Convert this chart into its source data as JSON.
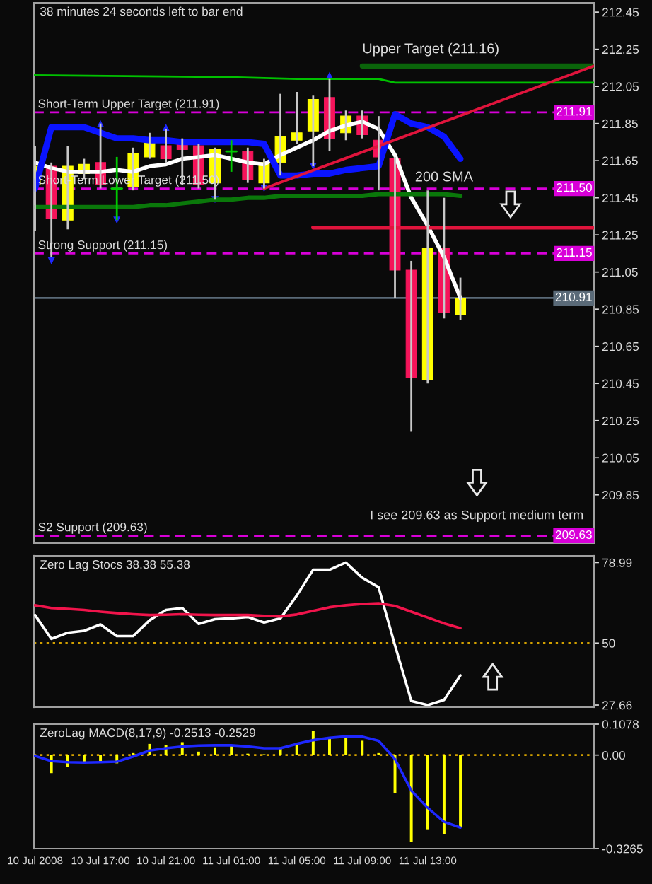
{
  "chart_data": [
    {
      "type": "candlestick",
      "annotations": [
        "38 minutes 24 seconds left to bar end",
        {
          "text": "Short-Term Upper Target (211.91)",
          "x": "2008-07-10T12:56",
          "y": 211.91
        },
        {
          "text": "Short-Term Lower Target (211.50)",
          "x": "2008-07-10T12:56",
          "y": 211.5
        },
        {
          "text": "Strong Support (211.15)",
          "x": "2008-07-10T12:56",
          "y": 211.15
        },
        {
          "text": "S2 Support (209.63)",
          "x": "2008-07-10T12:56",
          "y": 209.63
        },
        {
          "text": "I see 209.63 as Support medium term",
          "x": "2008-07-11T16:00",
          "y": 209.63
        }
      ],
      "x": [
        "2008-07-10T13:00",
        "2008-07-10T14:00",
        "2008-07-10T15:00",
        "2008-07-10T16:00",
        "2008-07-10T17:00",
        "2008-07-10T18:00",
        "2008-07-10T19:00",
        "2008-07-10T20:00",
        "2008-07-10T21:00",
        "2008-07-10T22:00",
        "2008-07-10T23:00",
        "2008-07-11T00:00",
        "2008-07-11T01:00",
        "2008-07-11T02:00",
        "2008-07-11T03:00",
        "2008-07-11T04:00",
        "2008-07-11T05:00",
        "2008-07-11T06:00",
        "2008-07-11T07:00",
        "2008-07-11T08:00",
        "2008-07-11T09:00",
        "2008-07-11T10:00",
        "2008-07-11T11:00",
        "2008-07-11T12:00",
        "2008-07-11T13:00",
        "2008-07-11T14:00",
        "2008-07-11T15:00"
      ],
      "series": [
        {
          "type": "candlestick",
          "color": "#c8c8c8",
          "colors": [
            "#ffff00",
            "#f5145a",
            "#ffff00",
            "#ffff00",
            "#f5145a",
            "#00c800",
            "#ffff00",
            "#ffff00",
            "#f5145a",
            "#f5145a",
            "#f5145a",
            "#ffff00",
            "#00c800",
            "#f5145a",
            "#ffff00",
            "#ffff00",
            "#ffff00",
            "#ffff00",
            "#f5145a",
            "#ffff00",
            "#f5145a",
            "#f5145a",
            "#f5145a",
            "#f5145a",
            "#ffff00",
            "#f5145a",
            "#ffff00"
          ],
          "ohlc": [
            [
              211.52,
              211.73,
              211.27,
              211.62
            ],
            [
              211.62,
              211.64,
              211.13,
              211.34
            ],
            [
              211.33,
              211.73,
              211.28,
              211.62
            ],
            [
              211.58,
              211.66,
              211.55,
              211.63
            ],
            [
              211.64,
              211.85,
              211.5,
              211.52
            ],
            [
              211.5,
              211.67,
              211.33,
              211.5
            ],
            [
              211.51,
              211.72,
              211.49,
              211.69
            ],
            [
              211.67,
              211.8,
              211.66,
              211.76
            ],
            [
              211.73,
              211.82,
              211.64,
              211.66
            ],
            [
              211.76,
              211.77,
              211.52,
              211.71
            ],
            [
              211.73,
              211.74,
              211.5,
              211.52
            ],
            [
              211.53,
              211.72,
              211.44,
              211.71
            ],
            [
              211.7,
              211.76,
              211.59,
              211.7
            ],
            [
              211.7,
              211.72,
              211.53,
              211.55
            ],
            [
              211.53,
              211.66,
              211.5,
              211.64
            ],
            [
              211.64,
              212.01,
              211.57,
              211.78
            ],
            [
              211.76,
              212.02,
              211.74,
              211.8
            ],
            [
              211.81,
              212.0,
              211.62,
              211.98
            ],
            [
              211.99,
              212.09,
              211.7,
              211.77
            ],
            [
              211.8,
              211.92,
              211.76,
              211.89
            ],
            [
              211.89,
              211.92,
              211.77,
              211.79
            ],
            [
              211.76,
              211.89,
              211.49,
              211.67
            ],
            [
              211.66,
              211.67,
              210.91,
              211.06
            ],
            [
              211.06,
              211.11,
              210.19,
              210.48
            ],
            [
              210.47,
              211.49,
              210.45,
              211.18
            ],
            [
              211.18,
              211.45,
              210.8,
              210.83
            ],
            [
              210.82,
              211.02,
              210.79,
              210.91
            ]
          ]
        },
        {
          "type": "line",
          "color": "#ffffff",
          "values": [
            211.64,
            211.61,
            211.59,
            211.59,
            211.59,
            211.6,
            211.59,
            211.62,
            211.63,
            211.66,
            211.67,
            211.68,
            211.66,
            211.64,
            211.63,
            211.68,
            211.72,
            211.76,
            211.81,
            211.84,
            211.86,
            211.82,
            211.68,
            211.45,
            211.3,
            211.13,
            210.91
          ]
        },
        {
          "type": "line",
          "color": "#0a14ff",
          "values": [
            211.5,
            211.83,
            211.83,
            211.83,
            211.8,
            211.77,
            211.77,
            211.76,
            211.76,
            211.75,
            211.75,
            211.75,
            211.75,
            211.75,
            211.74,
            211.57,
            211.57,
            211.58,
            211.58,
            211.6,
            211.61,
            211.62,
            211.9,
            211.85,
            211.83,
            211.78,
            211.66
          ]
        },
        {
          "type": "line",
          "color": "#00c000",
          "x": [
            "2008-07-10T12:56",
            "2008-07-11T01:00",
            "2008-07-11T05:00",
            "2008-07-11T10:00",
            "2008-07-11T11:00",
            "2008-07-11T23:10"
          ],
          "values": [
            212.11,
            212.1,
            212.09,
            212.09,
            212.07,
            212.07
          ]
        },
        {
          "type": "line",
          "name": "200 SMA",
          "color": "#0a780a",
          "values": [
            211.4,
            211.4,
            211.4,
            211.4,
            211.4,
            211.4,
            211.4,
            211.41,
            211.41,
            211.42,
            211.43,
            211.44,
            211.44,
            211.45,
            211.45,
            211.46,
            211.46,
            211.46,
            211.46,
            211.46,
            211.46,
            211.47,
            211.47,
            211.47,
            211.47,
            211.47,
            211.46
          ]
        },
        {
          "type": "line",
          "name": "Upper Target (211.16)",
          "color": "#0a640a",
          "x": [
            "2008-07-11T09:00",
            "2008-07-11T23:10"
          ],
          "values": [
            212.16,
            212.16
          ]
        },
        {
          "type": "line",
          "color": "#e0143c",
          "x": [
            "2008-07-11T06:00",
            "2008-07-11T23:10"
          ],
          "values": [
            211.29,
            211.29
          ]
        },
        {
          "type": "line",
          "color": "#e0143c",
          "x": [
            "2008-07-11T03:00",
            "2008-07-11T23:10"
          ],
          "values": [
            211.5,
            212.16
          ]
        },
        {
          "type": "scatter",
          "marker": "triangle",
          "color": "#1e28ff",
          "x": [
            "2008-07-10T17:00",
            "2008-07-10T21:00",
            "2008-07-11T07:00"
          ],
          "values": [
            211.85,
            211.83,
            212.11
          ]
        },
        {
          "type": "scatter",
          "marker": "triangle",
          "color": "#1e28ff",
          "x": [
            "2008-07-10T14:00",
            "2008-07-10T18:00",
            "2008-07-11T00:00",
            "2008-07-11T03:00",
            "2008-07-11T06:00"
          ],
          "values": [
            211.11,
            211.33,
            211.44,
            211.5,
            211.62
          ]
        }
      ],
      "ref_lines": [
        {
          "axis": "y",
          "value": 211.91,
          "label": "211.91",
          "color": "#d800d8",
          "line_style": "dashed"
        },
        {
          "axis": "y",
          "value": 211.5,
          "label": "211.50",
          "color": "#d800d8",
          "line_style": "dashed"
        },
        {
          "axis": "y",
          "value": 211.15,
          "label": "211.15",
          "color": "#d800d8",
          "line_style": "dashed"
        },
        {
          "axis": "y",
          "value": 209.63,
          "label": "209.63",
          "color": "#d800d8",
          "line_style": "dashed"
        },
        {
          "axis": "y",
          "value": 210.91,
          "label": "210.91",
          "color": "#5a6a78",
          "line_style": "solid"
        }
      ],
      "xlim": [
        "2008-07-10T12:56",
        "2008-07-11T23:10"
      ],
      "ylim": [
        209.59,
        212.5
      ],
      "yticks": [
        212.45,
        212.25,
        212.05,
        211.85,
        211.65,
        211.45,
        211.25,
        211.05,
        210.85,
        210.65,
        210.45,
        210.25,
        210.05,
        209.85
      ],
      "tick_labels": "y"
    },
    {
      "type": "line",
      "title": "Zero Lag Stocs 38.38 55.38",
      "x": [
        "2008-07-10T13:00",
        "2008-07-10T14:00",
        "2008-07-10T15:00",
        "2008-07-10T16:00",
        "2008-07-10T17:00",
        "2008-07-10T18:00",
        "2008-07-10T19:00",
        "2008-07-10T20:00",
        "2008-07-10T21:00",
        "2008-07-10T22:00",
        "2008-07-10T23:00",
        "2008-07-11T00:00",
        "2008-07-11T01:00",
        "2008-07-11T02:00",
        "2008-07-11T03:00",
        "2008-07-11T04:00",
        "2008-07-11T05:00",
        "2008-07-11T06:00",
        "2008-07-11T07:00",
        "2008-07-11T08:00",
        "2008-07-11T09:00",
        "2008-07-11T10:00",
        "2008-07-11T11:00",
        "2008-07-11T12:00",
        "2008-07-11T13:00",
        "2008-07-11T14:00",
        "2008-07-11T15:00"
      ],
      "series": [
        {
          "color": "#ffffff",
          "values": [
            60.1,
            51.5,
            53.7,
            54.4,
            56.7,
            52.5,
            52.5,
            58.2,
            61.9,
            62.6,
            56.9,
            58.6,
            58.9,
            59.4,
            57.4,
            58.9,
            67.1,
            76.4,
            76.4,
            78.99,
            73.5,
            70.1,
            49.2,
            29.1,
            27.66,
            29.5,
            38.38
          ]
        },
        {
          "color": "#f0144b",
          "values": [
            63.6,
            62.6,
            62.3,
            61.9,
            61.3,
            60.8,
            60.4,
            60.1,
            60.2,
            60.4,
            60.2,
            60.1,
            60.1,
            60.1,
            59.8,
            59.6,
            60.3,
            61.6,
            62.9,
            63.6,
            64.1,
            64.3,
            63.4,
            61.3,
            59.2,
            57.1,
            55.38
          ]
        }
      ],
      "ref_lines": [
        {
          "axis": "y",
          "value": 50,
          "color": "#d2a000",
          "line_style": "dotted"
        }
      ],
      "xlim": [
        "2008-07-10T12:56",
        "2008-07-11T23:10"
      ],
      "ylim": [
        26.9,
        81.4
      ],
      "yticks": [
        78.99,
        50,
        27.66
      ],
      "tick_labels": "y"
    },
    {
      "type": "bar",
      "title": "ZeroLag MACD(8,17,9) -0.2513 -0.2529",
      "x": [
        "2008-07-10T13:00",
        "2008-07-10T14:00",
        "2008-07-10T15:00",
        "2008-07-10T16:00",
        "2008-07-10T17:00",
        "2008-07-10T18:00",
        "2008-07-10T19:00",
        "2008-07-10T20:00",
        "2008-07-10T21:00",
        "2008-07-10T22:00",
        "2008-07-10T23:00",
        "2008-07-11T00:00",
        "2008-07-11T01:00",
        "2008-07-11T02:00",
        "2008-07-11T03:00",
        "2008-07-11T04:00",
        "2008-07-11T05:00",
        "2008-07-11T06:00",
        "2008-07-11T07:00",
        "2008-07-11T08:00",
        "2008-07-11T09:00",
        "2008-07-11T10:00",
        "2008-07-11T11:00",
        "2008-07-11T12:00",
        "2008-07-11T13:00",
        "2008-07-11T14:00",
        "2008-07-11T15:00"
      ],
      "series": [
        {
          "type": "bar",
          "color": "#ffff00",
          "values": [
            null,
            -0.063,
            -0.041,
            -0.023,
            -0.026,
            -0.029,
            0.007,
            0.039,
            0.034,
            0.045,
            0.012,
            0.027,
            0.032,
            0.005,
            0.003,
            0.027,
            0.042,
            0.084,
            0.057,
            0.061,
            0.05,
            0.007,
            -0.134,
            -0.304,
            -0.259,
            -0.277,
            -0.2513
          ]
        },
        {
          "type": "line",
          "color": "#1e28ff",
          "values": [
            -0.003,
            -0.021,
            -0.025,
            -0.026,
            -0.025,
            -0.023,
            -0.005,
            0.016,
            0.024,
            0.03,
            0.033,
            0.034,
            0.034,
            0.03,
            0.024,
            0.024,
            0.039,
            0.052,
            0.06,
            0.065,
            0.064,
            0.05,
            -0.014,
            -0.124,
            -0.184,
            -0.233,
            -0.2529
          ]
        }
      ],
      "ref_lines": [
        {
          "axis": "y",
          "value": 0,
          "color": "#d2a000",
          "line_style": "dotted"
        }
      ],
      "xlim": [
        "2008-07-10T12:56",
        "2008-07-11T23:10"
      ],
      "ylim": [
        -0.3265,
        0.1078
      ],
      "xticks": [
        {
          "value": "2008-07-10T13:00",
          "label": "10 Jul 2008"
        },
        {
          "value": "2008-07-10T17:00",
          "label": "10 Jul 17:00"
        },
        {
          "value": "2008-07-10T21:00",
          "label": "10 Jul 21:00"
        },
        {
          "value": "2008-07-11T01:00",
          "label": "11 Jul 01:00"
        },
        {
          "value": "2008-07-11T05:00",
          "label": "11 Jul 05:00"
        },
        {
          "value": "2008-07-11T09:00",
          "label": "11 Jul 09:00"
        },
        {
          "value": "2008-07-11T13:00",
          "label": "11 Jul 13:00"
        }
      ],
      "yticks": [
        0.1078,
        {
          "value": 0,
          "label": "0.00"
        },
        -0.3265
      ]
    }
  ]
}
